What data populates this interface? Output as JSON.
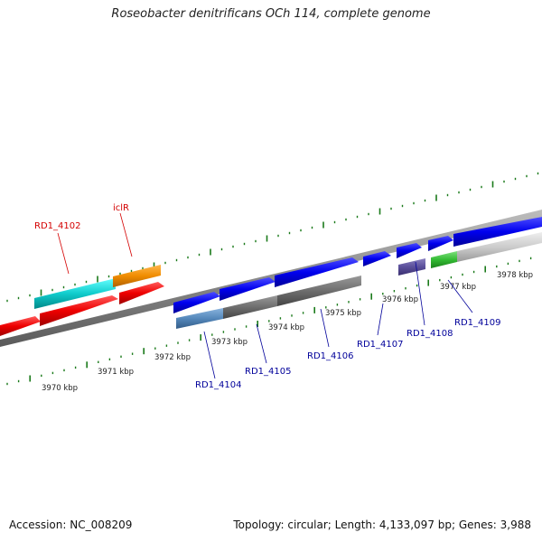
{
  "title": "Roseobacter denitrificans OCh 114, complete genome",
  "footer": {
    "accession": "Accession: NC_008209",
    "summary": "Topology: circular; Length: 4,133,097 bp; Genes: 3,988"
  },
  "colors": {
    "label_red": "#d40000",
    "label_blue": "#00009a",
    "tick": "#1a7a1a",
    "backbone": "#8a8a8a"
  },
  "ruler": {
    "labels": [
      "3970 kbp",
      "3971 kbp",
      "3972 kbp",
      "3973 kbp",
      "3974 kbp",
      "3975 kbp",
      "3976 kbp",
      "3977 kbp",
      "3978 kbp"
    ]
  },
  "labels": {
    "red": [
      "RD1_4102",
      "iclR"
    ],
    "blue": [
      "RD1_4104",
      "RD1_4105",
      "RD1_4106",
      "RD1_4107",
      "RD1_4108",
      "RD1_4109"
    ]
  }
}
